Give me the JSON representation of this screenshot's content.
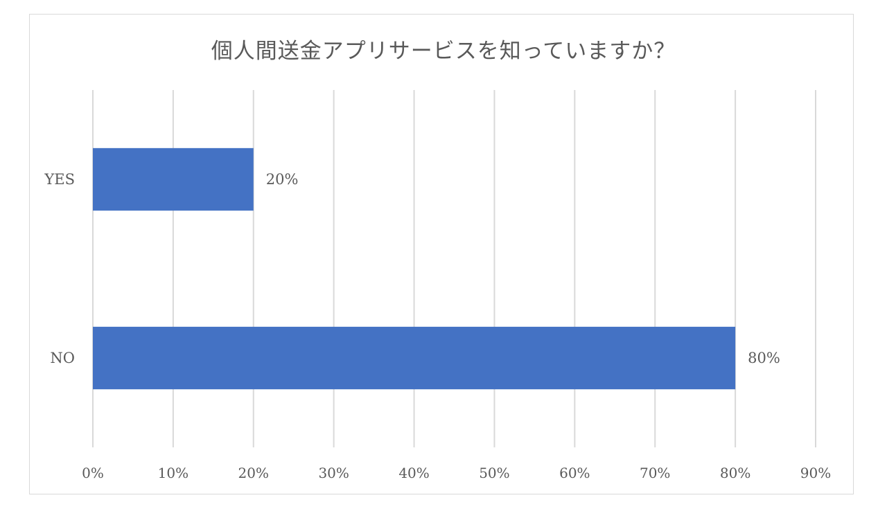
{
  "chart_data": {
    "type": "bar",
    "orientation": "horizontal",
    "title": "個人間送金アプリサービスを知っていますか？",
    "categories": [
      "YES",
      "NO"
    ],
    "values": [
      20,
      80
    ],
    "value_labels": [
      "20%",
      "80%"
    ],
    "xlim": [
      0,
      90
    ],
    "x_ticks": [
      0,
      10,
      20,
      30,
      40,
      50,
      60,
      70,
      80,
      90
    ],
    "x_tick_labels": [
      "0%",
      "10%",
      "20%",
      "30%",
      "40%",
      "50%",
      "60%",
      "70%",
      "80%",
      "90%"
    ],
    "grid": true,
    "legend": "none",
    "bar_color": "#4472c4",
    "grid_color": "#d9d9d9"
  }
}
